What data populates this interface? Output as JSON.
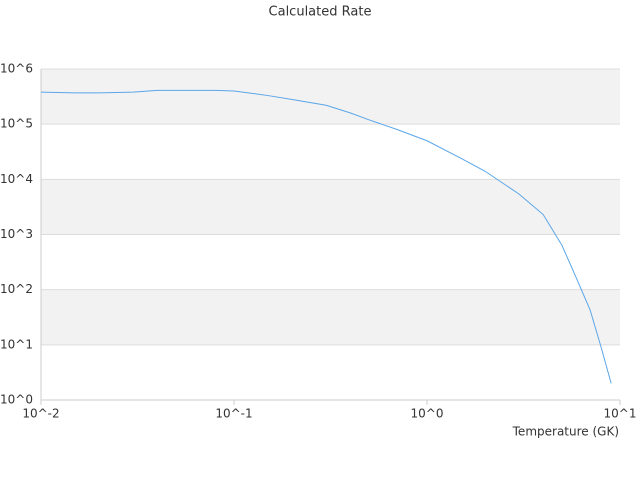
{
  "chart_data": {
    "type": "line",
    "title": "Calculated Rate",
    "x_label": "Temperature (GK)",
    "x": [
      0.01,
      0.015,
      0.02,
      0.03,
      0.04,
      0.06,
      0.08,
      0.1,
      0.15,
      0.2,
      0.3,
      0.4,
      0.5,
      0.7,
      1,
      1.5,
      2,
      3,
      4,
      5,
      6,
      7,
      8,
      9
    ],
    "series": [
      {
        "color": "#5aa6e8",
        "values": [
          380000,
          370000,
          370000,
          380000,
          410000,
          410000,
          410000,
          400000,
          330000,
          280000,
          220000,
          160000,
          120000,
          80000,
          50000,
          24000,
          14000,
          5400,
          2300,
          640,
          150,
          43,
          8.8,
          2.0
        ]
      }
    ],
    "xscale": "log",
    "yscale": "log",
    "xlim": [
      0.01,
      10
    ],
    "ylim": [
      1,
      1000000
    ],
    "xticks": [
      {
        "value": 0.01,
        "label": "10^-2"
      },
      {
        "value": 0.1,
        "label": "10^-1"
      },
      {
        "value": 1,
        "label": "10^0"
      },
      {
        "value": 10,
        "label": "10^1"
      }
    ],
    "yticks": [
      {
        "value": 1,
        "label": "10^0"
      },
      {
        "value": 10,
        "label": "10^1"
      },
      {
        "value": 100,
        "label": "10^2"
      },
      {
        "value": 1000,
        "label": "10^3"
      },
      {
        "value": 10000,
        "label": "10^4"
      },
      {
        "value": 100000,
        "label": "10^5"
      },
      {
        "value": 1000000,
        "label": "10^6"
      }
    ],
    "grid": true
  }
}
